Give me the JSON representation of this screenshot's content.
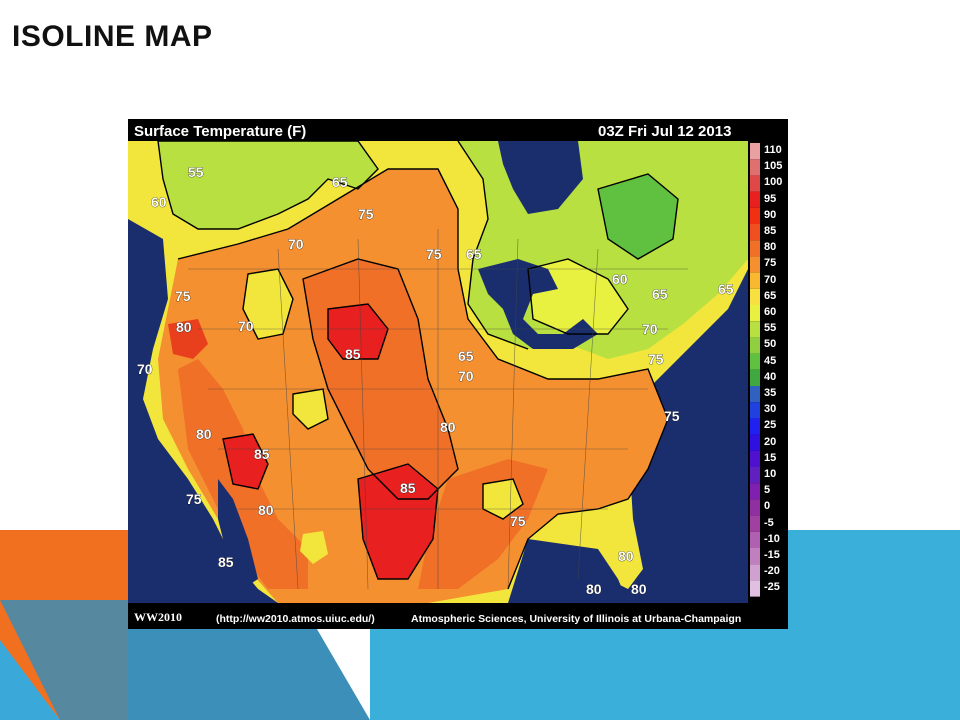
{
  "slide": {
    "title": "ISOLINE MAP"
  },
  "map": {
    "title": "Surface Temperature (F)",
    "timestamp": "03Z Fri Jul 12 2013",
    "footer_left": "WW2010",
    "footer_url": "(http://ww2010.atmos.uiuc.edu/)",
    "footer_credit": "Atmospheric Sciences, University of Illinois at Urbana-Champaign",
    "legend": [
      {
        "label": "110",
        "color": "#e8a0a0"
      },
      {
        "label": "105",
        "color": "#e07070"
      },
      {
        "label": "100",
        "color": "#e04848"
      },
      {
        "label": "95",
        "color": "#e82020"
      },
      {
        "label": "90",
        "color": "#f03010"
      },
      {
        "label": "85",
        "color": "#f05020"
      },
      {
        "label": "80",
        "color": "#f07028"
      },
      {
        "label": "75",
        "color": "#f59030"
      },
      {
        "label": "70",
        "color": "#f8b830"
      },
      {
        "label": "65",
        "color": "#f8e040"
      },
      {
        "label": "60",
        "color": "#e8f040"
      },
      {
        "label": "55",
        "color": "#b8e040"
      },
      {
        "label": "50",
        "color": "#90d040"
      },
      {
        "label": "45",
        "color": "#60c040"
      },
      {
        "label": "40",
        "color": "#40a840"
      },
      {
        "label": "35",
        "color": "#3060c0"
      },
      {
        "label": "30",
        "color": "#2040e0"
      },
      {
        "label": "25",
        "color": "#2020f0"
      },
      {
        "label": "20",
        "color": "#3010e0"
      },
      {
        "label": "15",
        "color": "#5010d0"
      },
      {
        "label": "10",
        "color": "#6020c0"
      },
      {
        "label": "5",
        "color": "#8020b0"
      },
      {
        "label": "0",
        "color": "#9030a0"
      },
      {
        "label": "-5",
        "color": "#a040a0"
      },
      {
        "label": "-10",
        "color": "#b060b0"
      },
      {
        "label": "-15",
        "color": "#c080c0"
      },
      {
        "label": "-20",
        "color": "#d0a0d0"
      },
      {
        "label": "-25",
        "color": "#e0c0e0"
      }
    ],
    "isoline_labels": [
      "55",
      "65",
      "60",
      "75",
      "70",
      "65",
      "75",
      "65",
      "75",
      "80",
      "70",
      "60",
      "65",
      "65",
      "70",
      "75",
      "80",
      "85",
      "70",
      "70",
      "80",
      "75",
      "85",
      "85",
      "75",
      "80",
      "75",
      "85",
      "80",
      "80",
      "80"
    ]
  }
}
